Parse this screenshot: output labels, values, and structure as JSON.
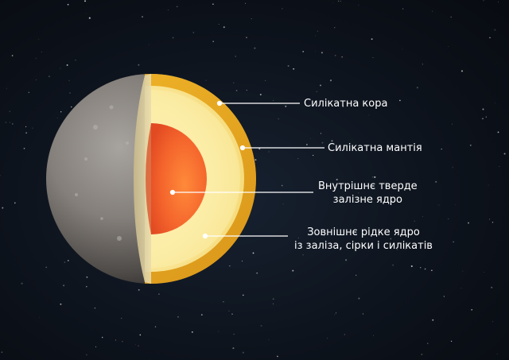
{
  "labels": {
    "crust": "Силікатна кора",
    "mantle": "Силікатна мантія",
    "inner_core_line1": "Внутрішнє тверде",
    "inner_core_line2": "залізне ядро",
    "outer_core_line1": "Зовнішнє рідке ядро",
    "outer_core_line2": "із заліза, сірки і силікатів"
  },
  "colors": {
    "background": "#0d131c",
    "planet_surface": "#8a8682",
    "crust": "#e3a31a",
    "mantle": "#fbeeaa",
    "inner_core": "#f0582a",
    "leader_line": "#ffffff"
  }
}
